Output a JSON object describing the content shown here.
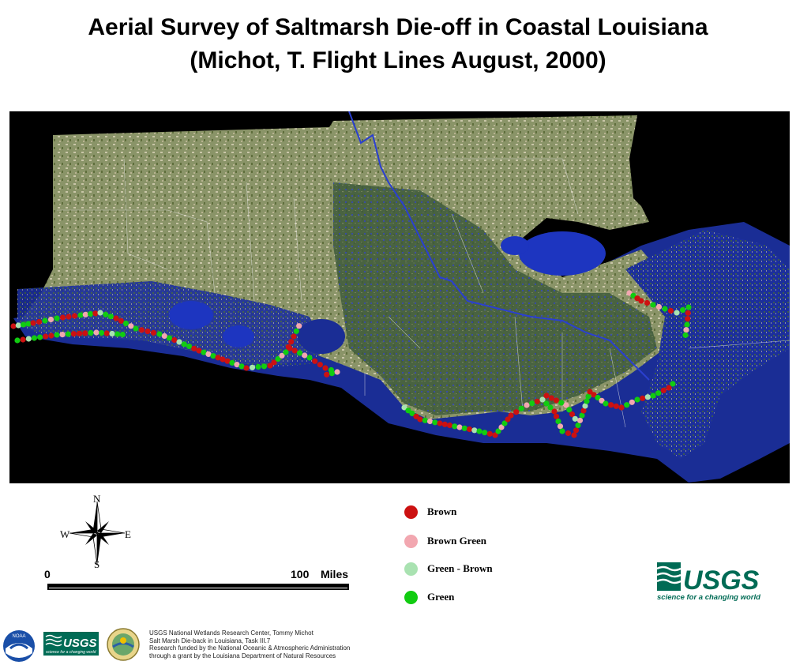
{
  "title": {
    "line1": "Aerial Survey of Saltmarsh Die-off in Coastal Louisiana",
    "line2": "(Michot, T.  Flight Lines August, 2000)"
  },
  "compass": {
    "n": "N",
    "s": "S",
    "e": "E",
    "w": "W"
  },
  "scale": {
    "start": "0",
    "end": "100",
    "unit": "Miles"
  },
  "legend": [
    {
      "label": "Brown",
      "color": "#cc1111"
    },
    {
      "label": "Brown Green",
      "color": "#f2a7b0"
    },
    {
      "label": "Green - Brown",
      "color": "#a9e2b1"
    },
    {
      "label": "Green",
      "color": "#11cc11"
    }
  ],
  "usgs": {
    "name": "USGS",
    "tagline": "science for a changing world"
  },
  "small_usgs": {
    "name": "USGS",
    "tagline": "science for a changing world"
  },
  "credits": [
    "USGS National Wetlands Research Center, Tommy Michot",
    "Salt Marsh Die-back in Louisiana, Task III.7",
    "Research funded by the National Oceanic & Atmospheric Administration",
    "through a grant by the Louisiana Department of Natural Resources"
  ],
  "noaa_logo_text": "NOAA",
  "colors": {
    "background": "#000000",
    "land": "#7a8a5a",
    "water": "#1c2f9c",
    "usgs_green": "#006b55"
  }
}
